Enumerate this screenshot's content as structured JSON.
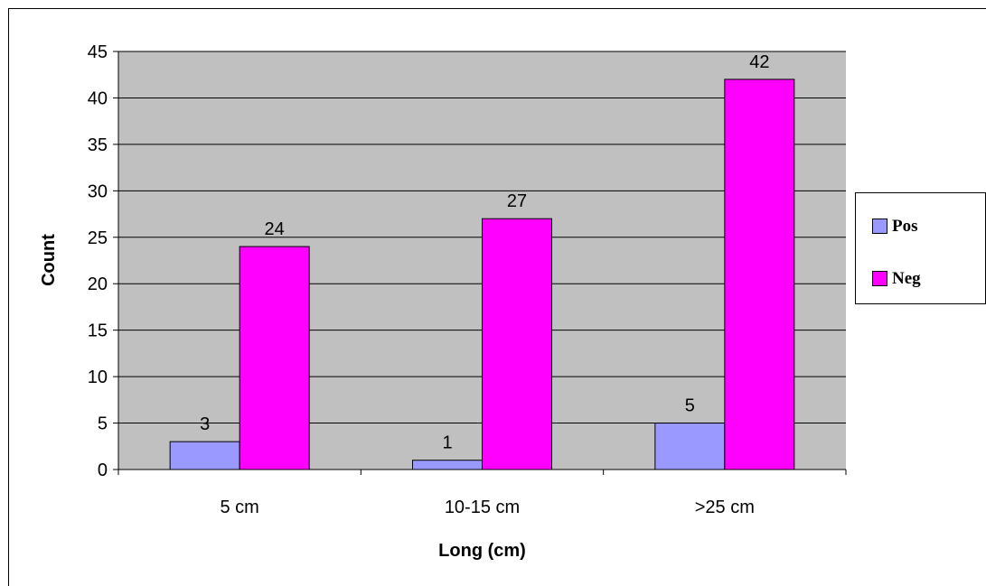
{
  "chart_data": {
    "type": "bar",
    "categories": [
      "5 cm",
      "10-15 cm",
      ">25 cm"
    ],
    "series": [
      {
        "name": "Pos",
        "values": [
          3,
          1,
          5
        ],
        "color": "#9999ff"
      },
      {
        "name": "Neg",
        "values": [
          24,
          27,
          42
        ],
        "color": "#ff00ff"
      }
    ],
    "xlabel": "Long (cm)",
    "ylabel": "Count",
    "ylim": [
      0,
      45
    ],
    "yticks": [
      0,
      5,
      10,
      15,
      20,
      25,
      30,
      35,
      40,
      45
    ],
    "grid": true,
    "plot_background": "#c0c0c0",
    "legend_position": "right"
  }
}
